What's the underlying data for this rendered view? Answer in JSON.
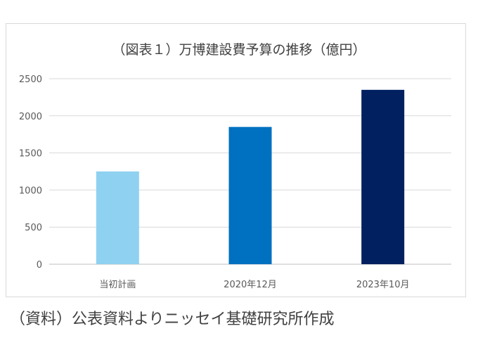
{
  "chart_data": {
    "type": "bar",
    "title": "（図表１）万博建設費予算の推移（億円）",
    "categories": [
      "当初計画",
      "2020年12月",
      "2023年10月"
    ],
    "values": [
      1250,
      1850,
      2350
    ],
    "colors": [
      "#8fd1f1",
      "#0070c0",
      "#002060"
    ],
    "xlabel": "",
    "ylabel": "",
    "ylim": [
      0,
      2500
    ],
    "yticks": [
      0,
      500,
      1000,
      1500,
      2000,
      2500
    ],
    "grid": true,
    "legend": "none"
  },
  "caption": "（資料）公表資料よりニッセイ基礎研究所作成"
}
